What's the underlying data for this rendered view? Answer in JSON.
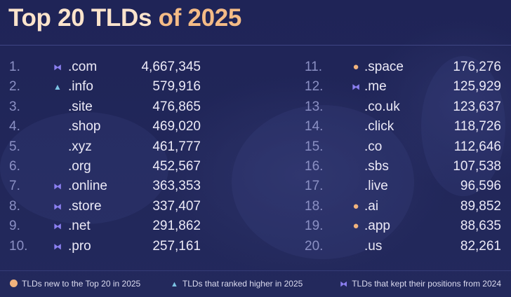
{
  "title": {
    "part1": "Top 20 TLDs",
    "part2": "of 2025"
  },
  "colors": {
    "background": "#1f2455",
    "new": "#f1b37d",
    "higher": "#7cc4e4",
    "kept": "#8b7ff0"
  },
  "rows": [
    {
      "rank": "1.",
      "status": "kept",
      "icon": "⧓",
      "tld": ".com",
      "count": "4,667,345"
    },
    {
      "rank": "2.",
      "status": "higher",
      "icon": "▲",
      "tld": ".info",
      "count": "579,916"
    },
    {
      "rank": "3.",
      "status": "",
      "icon": "",
      "tld": ".site",
      "count": "476,865"
    },
    {
      "rank": "4.",
      "status": "",
      "icon": "",
      "tld": ".shop",
      "count": "469,020"
    },
    {
      "rank": "5.",
      "status": "",
      "icon": "",
      "tld": ".xyz",
      "count": "461,777"
    },
    {
      "rank": "6.",
      "status": "",
      "icon": "",
      "tld": ".org",
      "count": "452,567"
    },
    {
      "rank": "7.",
      "status": "kept",
      "icon": "⧓",
      "tld": ".online",
      "count": "363,353"
    },
    {
      "rank": "8.",
      "status": "kept",
      "icon": "⧓",
      "tld": ".store",
      "count": "337,407"
    },
    {
      "rank": "9.",
      "status": "kept",
      "icon": "⧓",
      "tld": ".net",
      "count": "291,862"
    },
    {
      "rank": "10.",
      "status": "kept",
      "icon": "⧓",
      "tld": ".pro",
      "count": "257,161"
    },
    {
      "rank": "11.",
      "status": "new",
      "icon": "●",
      "tld": ".space",
      "count": "176,276"
    },
    {
      "rank": "12.",
      "status": "kept",
      "icon": "⧓",
      "tld": ".me",
      "count": "125,929"
    },
    {
      "rank": "13.",
      "status": "",
      "icon": "",
      "tld": ".co.uk",
      "count": "123,637"
    },
    {
      "rank": "14.",
      "status": "",
      "icon": "",
      "tld": ".click",
      "count": "118,726"
    },
    {
      "rank": "15.",
      "status": "",
      "icon": "",
      "tld": ".co",
      "count": "112,646"
    },
    {
      "rank": "16.",
      "status": "",
      "icon": "",
      "tld": ".sbs",
      "count": "107,538"
    },
    {
      "rank": "17.",
      "status": "",
      "icon": "",
      "tld": ".live",
      "count": "96,596"
    },
    {
      "rank": "18.",
      "status": "new",
      "icon": "●",
      "tld": ".ai",
      "count": "89,852"
    },
    {
      "rank": "19.",
      "status": "new",
      "icon": "●",
      "tld": ".app",
      "count": "88,635"
    },
    {
      "rank": "20.",
      "status": "",
      "icon": "",
      "tld": ".us",
      "count": "82,261"
    }
  ],
  "legend": [
    {
      "icon": "new-dot-icon",
      "label": "TLDs new to the Top 20 in 2025"
    },
    {
      "icon": "triangle-up-icon",
      "label": "TLDs that ranked higher in 2025"
    },
    {
      "icon": "bowtie-icon",
      "label": "TLDs that kept their positions from 2024"
    }
  ]
}
